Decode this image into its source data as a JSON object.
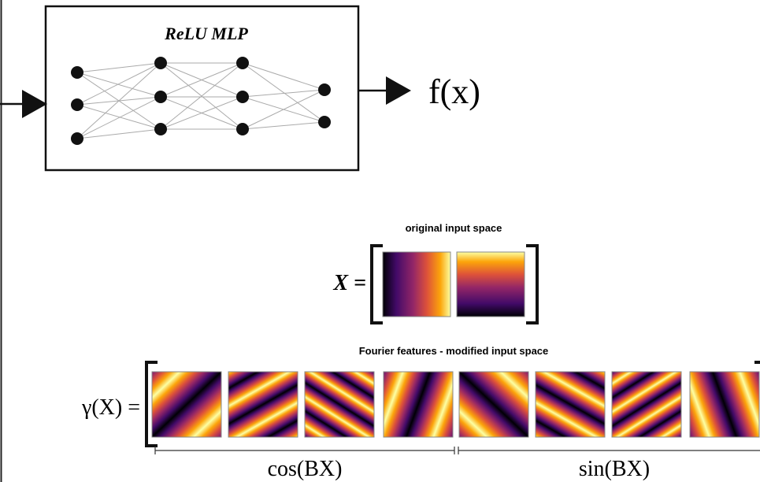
{
  "mlp": {
    "title": "ReLU MLP",
    "output": "f(x)"
  },
  "original": {
    "caption": "original input space",
    "lhs": "X ="
  },
  "fourier": {
    "caption": "Fourier features - modified input space",
    "lhs": "γ(X) =",
    "cos_label": "cos(BX)",
    "sin_label": "sin(BX)"
  }
}
